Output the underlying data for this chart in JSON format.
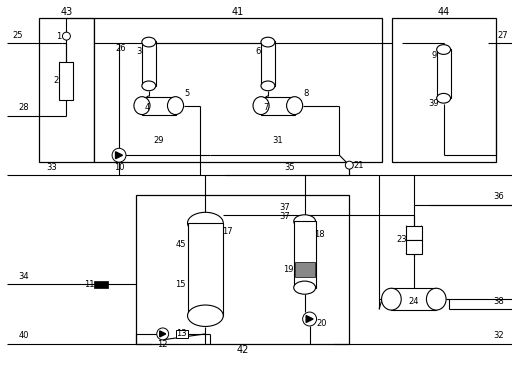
{
  "fig_width": 5.14,
  "fig_height": 3.74,
  "dpi": 100
}
